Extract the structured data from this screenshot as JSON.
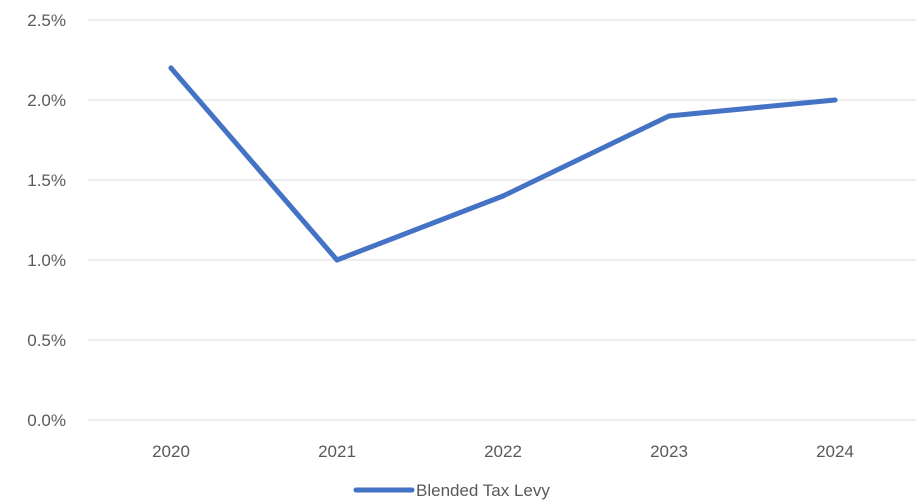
{
  "chart_data": {
    "type": "line",
    "title": "",
    "xlabel": "",
    "ylabel": "",
    "categories": [
      "2020",
      "2021",
      "2022",
      "2023",
      "2024"
    ],
    "series": [
      {
        "name": "Blended Tax Levy",
        "values": [
          2.2,
          1.0,
          1.4,
          1.9,
          2.0
        ],
        "color": "#4472c4"
      }
    ],
    "ylim": [
      0,
      2.5
    ],
    "y_ticks": [
      "0.0%",
      "0.5%",
      "1.0%",
      "1.5%",
      "2.0%",
      "2.5%"
    ],
    "y_unit": "%",
    "grid": true,
    "legend_position": "bottom"
  }
}
